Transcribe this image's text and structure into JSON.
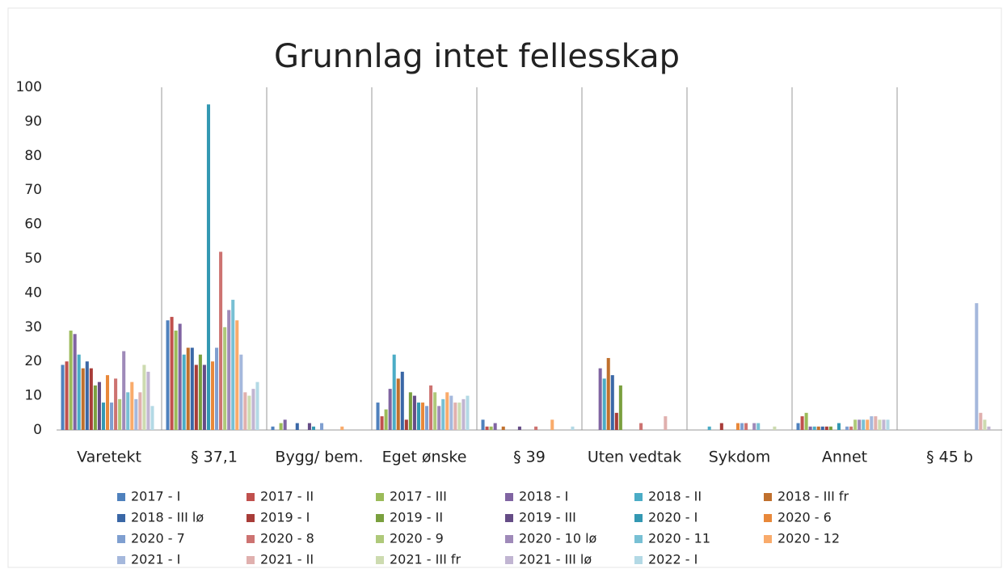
{
  "chart_data": {
    "type": "bar",
    "title": "Grunnlag intet fellesskap",
    "categories": [
      "Varetekt",
      "§ 37,1",
      "Bygg/ bem.",
      "Eget ønske",
      "§ 39",
      "Uten vedtak",
      "Sykdom",
      "Annet",
      "§ 45 b"
    ],
    "ylim": [
      0,
      100
    ],
    "yticks": [
      0,
      10,
      20,
      30,
      40,
      50,
      60,
      70,
      80,
      90,
      100
    ],
    "grid": true,
    "legend": "bottom",
    "series": [
      {
        "name": "2017 - I",
        "color": "#4f81bd",
        "values": [
          19,
          32,
          1,
          8,
          3,
          0,
          0,
          2,
          0
        ]
      },
      {
        "name": "2017 - II",
        "color": "#c0504d",
        "values": [
          20,
          33,
          0,
          4,
          1,
          0,
          0,
          4,
          0
        ]
      },
      {
        "name": "2017 - III",
        "color": "#9bbb59",
        "values": [
          29,
          29,
          2,
          6,
          1,
          0,
          0,
          5,
          0
        ]
      },
      {
        "name": "2018 - I",
        "color": "#8064a2",
        "values": [
          28,
          31,
          3,
          12,
          2,
          18,
          0,
          1,
          0
        ]
      },
      {
        "name": "2018 - II",
        "color": "#4bacc6",
        "values": [
          22,
          22,
          0,
          22,
          0,
          15,
          1,
          1,
          0
        ]
      },
      {
        "name": "2018 - III fr",
        "color": "#c0702d",
        "values": [
          18,
          24,
          0,
          15,
          1,
          21,
          0,
          1,
          0
        ]
      },
      {
        "name": "2018 - III lø",
        "color": "#3a67a6",
        "values": [
          20,
          24,
          2,
          17,
          0,
          16,
          0,
          1,
          0
        ]
      },
      {
        "name": "2019 - I",
        "color": "#a83c38",
        "values": [
          18,
          19,
          0,
          3,
          0,
          5,
          2,
          1,
          0
        ]
      },
      {
        "name": "2019 - II",
        "color": "#7aa03e",
        "values": [
          13,
          22,
          0,
          11,
          0,
          13,
          0,
          1,
          0
        ]
      },
      {
        "name": "2019 - III",
        "color": "#654c86",
        "values": [
          14,
          19,
          2,
          10,
          1,
          0,
          0,
          0,
          0
        ]
      },
      {
        "name": "2020 - I",
        "color": "#3398b2",
        "values": [
          8,
          95,
          1,
          8,
          0,
          0,
          0,
          2,
          0
        ]
      },
      {
        "name": "2020 - 6",
        "color": "#e8883a",
        "values": [
          16,
          20,
          0,
          8,
          0,
          0,
          2,
          0,
          0
        ]
      },
      {
        "name": "2020 - 7",
        "color": "#7f9fd0",
        "values": [
          8,
          24,
          2,
          7,
          0,
          0,
          2,
          1,
          0
        ]
      },
      {
        "name": "2020 - 8",
        "color": "#cd7371",
        "values": [
          15,
          52,
          0,
          13,
          1,
          2,
          2,
          1,
          0
        ]
      },
      {
        "name": "2020 - 9",
        "color": "#afc97a",
        "values": [
          9,
          30,
          0,
          11,
          0,
          0,
          0,
          3,
          0
        ]
      },
      {
        "name": "2020 - 10 lø",
        "color": "#9f8ab9",
        "values": [
          23,
          35,
          0,
          7,
          0,
          0,
          2,
          3,
          0
        ]
      },
      {
        "name": "2020 - 11",
        "color": "#78c0d4",
        "values": [
          11,
          38,
          0,
          9,
          0,
          0,
          2,
          3,
          0
        ]
      },
      {
        "name": "2020 - 12",
        "color": "#f9ab6b",
        "values": [
          14,
          32,
          1,
          11,
          3,
          0,
          0,
          3,
          0
        ]
      },
      {
        "name": "2021 - I",
        "color": "#a5b8dc",
        "values": [
          9,
          22,
          0,
          10,
          0,
          0,
          0,
          4,
          37
        ]
      },
      {
        "name": "2021 - II",
        "color": "#e0b0ae",
        "values": [
          11,
          11,
          0,
          8,
          0,
          4,
          0,
          4,
          5
        ]
      },
      {
        "name": "2021 - III fr",
        "color": "#cddbb0",
        "values": [
          19,
          10,
          0,
          8,
          0,
          0,
          1,
          3,
          3
        ]
      },
      {
        "name": "2021 - III lø",
        "color": "#c1b5d2",
        "values": [
          17,
          12,
          0,
          9,
          0,
          0,
          0,
          3,
          1
        ]
      },
      {
        "name": "2022 - I",
        "color": "#b3d9e5",
        "values": [
          7,
          14,
          0,
          10,
          1,
          0,
          0,
          3,
          0
        ]
      }
    ]
  }
}
